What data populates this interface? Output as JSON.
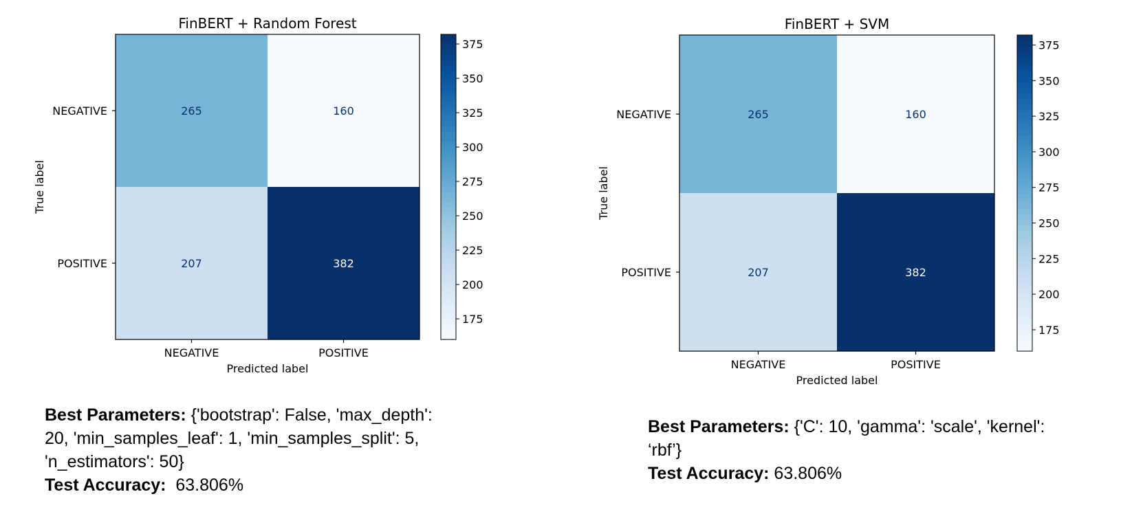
{
  "chart_data": [
    {
      "type": "heatmap",
      "title": "FinBERT + Random Forest",
      "xlabel": "Predicted label",
      "ylabel": "True label",
      "x_categories": [
        "NEGATIVE",
        "POSITIVE"
      ],
      "y_categories": [
        "NEGATIVE",
        "POSITIVE"
      ],
      "values": [
        [
          265,
          160
        ],
        [
          207,
          382
        ]
      ],
      "colormap": "Blues",
      "vmin": 160,
      "vmax": 382,
      "colorbar_ticks": [
        175,
        200,
        225,
        250,
        275,
        300,
        325,
        350,
        375
      ]
    },
    {
      "type": "heatmap",
      "title": "FinBERT + SVM",
      "xlabel": "Predicted label",
      "ylabel": "True label",
      "x_categories": [
        "NEGATIVE",
        "POSITIVE"
      ],
      "y_categories": [
        "NEGATIVE",
        "POSITIVE"
      ],
      "values": [
        [
          265,
          160
        ],
        [
          207,
          382
        ]
      ],
      "colormap": "Blues",
      "vmin": 160,
      "vmax": 382,
      "colorbar_ticks": [
        175,
        200,
        225,
        250,
        275,
        300,
        325,
        350,
        375
      ]
    }
  ],
  "notes": [
    {
      "params_label": "Best Parameters:",
      "params_lines": [
        "{'bootstrap': False, 'max_depth':",
        "20, 'min_samples_leaf': 1, 'min_samples_split': 5,",
        "'n_estimators': 50}"
      ],
      "accuracy_label": "Test Accuracy:",
      "accuracy_value": "63.806%"
    },
    {
      "params_label": "Best Parameters:",
      "params_lines": [
        "{'C': 10, 'gamma': 'scale', 'kernel':",
        "‘rbf’}"
      ],
      "accuracy_label": "Test Accuracy:",
      "accuracy_value": "63.806%"
    }
  ]
}
